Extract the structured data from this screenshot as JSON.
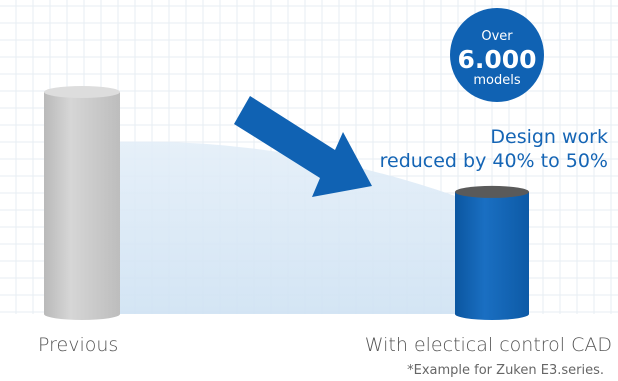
{
  "chart_data": {
    "type": "bar",
    "categories": [
      "Previous",
      "With electical control CAD"
    ],
    "series": [
      {
        "values": [
          100,
          55
        ]
      }
    ],
    "ylim": [
      0,
      100
    ]
  },
  "badge": {
    "line1": "Over",
    "value": "6.000",
    "line3": "models"
  },
  "headline": {
    "line1": "Design work",
    "line2": "reduced by 40% to 50%"
  },
  "footnote": "*Example for Zuken E3.series.",
  "colors": {
    "previous": "#c8c8c8",
    "cad": "#1062b3",
    "accent": "#1565b5",
    "grid": "#e7edf3"
  }
}
